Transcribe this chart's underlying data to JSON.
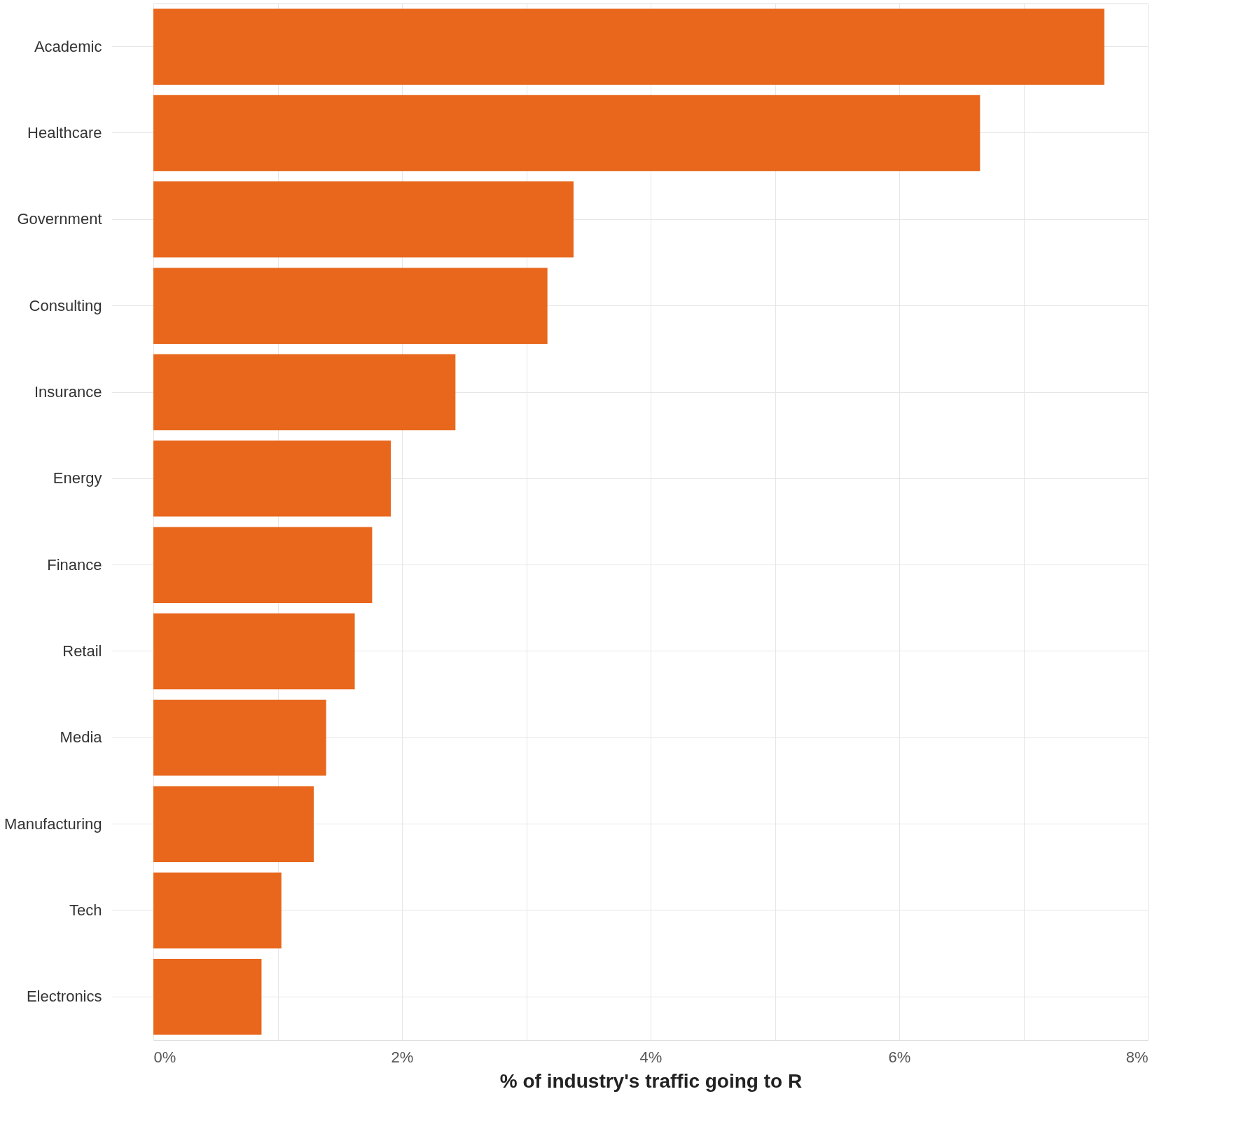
{
  "chart_data": {
    "type": "bar",
    "orientation": "horizontal",
    "xlabel": "% of industry's traffic going to R",
    "categories": [
      "Academic",
      "Healthcare",
      "Government",
      "Consulting",
      "Insurance",
      "Energy",
      "Finance",
      "Retail",
      "Media",
      "Manufacturing",
      "Tech",
      "Electronics"
    ],
    "values": [
      7.65,
      6.65,
      3.38,
      3.17,
      2.43,
      1.91,
      1.76,
      1.62,
      1.39,
      1.29,
      1.03,
      0.87
    ],
    "color": "#e8671c",
    "xlim": [
      0,
      8
    ],
    "xticks": [
      {
        "value": 0,
        "label": "0%"
      },
      {
        "value": 1,
        "label": null
      },
      {
        "value": 2,
        "label": "2%"
      },
      {
        "value": 3,
        "label": null
      },
      {
        "value": 4,
        "label": "4%"
      },
      {
        "value": 5,
        "label": null
      },
      {
        "value": 6,
        "label": "6%"
      },
      {
        "value": 7,
        "label": null
      },
      {
        "value": 8,
        "label": "8%"
      }
    ],
    "grid": true
  }
}
